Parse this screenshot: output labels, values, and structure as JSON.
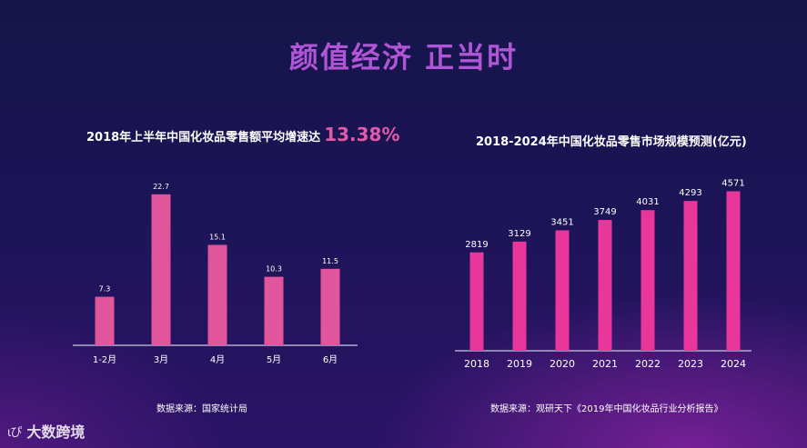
{
  "page": {
    "title": "颜值经济 正当时",
    "logo_mark": "ιぴ",
    "logo_text": "大数跨境"
  },
  "left_chart": {
    "title_prefix": "2018年上半年中国化妆品零售额平均增速达",
    "title_highlight": "13.38%",
    "source": "数据来源：国家统计局"
  },
  "right_chart": {
    "title": "2018-2024年中国化妆品零售市场规模预测(亿元)",
    "source": "数据来源：观研天下《2019年中国化妆品行业分析报告》"
  },
  "colors": {
    "bar_left": "#e0559c",
    "bar_right": "#e8369a",
    "axis": "#c9c9e6",
    "title_highlight": "#e05aa8",
    "main_title": "#b055d6"
  },
  "chart_data": [
    {
      "type": "bar",
      "categories": [
        "1-2月",
        "3月",
        "4月",
        "5月",
        "6月"
      ],
      "values": [
        7.3,
        22.7,
        15.1,
        10.3,
        11.5
      ],
      "title": "2018年上半年中国化妆品零售额平均增速达13.38%",
      "xlabel": "",
      "ylabel": "",
      "ylim": [
        0,
        25
      ],
      "grid": false,
      "value_labels": [
        "7.3",
        "22.7",
        "15.1",
        "10.3",
        "11.5"
      ]
    },
    {
      "type": "bar",
      "categories": [
        "2018",
        "2019",
        "2020",
        "2021",
        "2022",
        "2023",
        "2024"
      ],
      "values": [
        2819,
        3129,
        3451,
        3749,
        4031,
        4293,
        4571
      ],
      "title": "2018-2024年中国化妆品零售市场规模预测(亿元)",
      "xlabel": "",
      "ylabel": "",
      "ylim": [
        0,
        5000
      ],
      "grid": false,
      "value_labels": [
        "2819",
        "3129",
        "3451",
        "3749",
        "4031",
        "4293",
        "4571"
      ]
    }
  ]
}
